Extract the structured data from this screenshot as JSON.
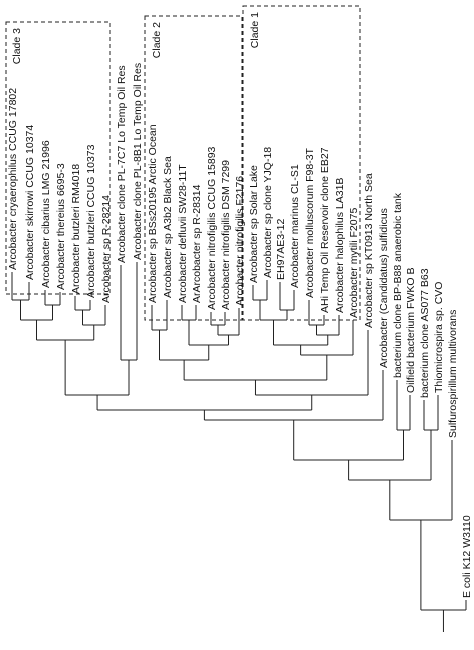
{
  "clades": [
    "Clade 3",
    "Clade 2",
    "Clade 1"
  ],
  "leaves": [
    "Arcobacter cryaerophilus CCUG 17802",
    "Arcobacter skirrowi CCUG 10374",
    "Arcobacter cibarius LMG 21996",
    "Arcobacter thereius 6695-3",
    "Arcobacter butzleri RM4018",
    "Arcobacter butzleri CCUG 10373",
    "Arcobacter sp R-28214",
    "Arcobacter clone PL-7C7 Lo Temp Oil Res",
    "Arcobacter clone PL-8B1 Lo Temp Oil Res",
    "Arcobacter sp BSs20195 Arctic Ocean",
    "Arcobacter sp A3b2 Black Sea",
    "Arcobacter defluvii SW28-11T",
    "ArArcobacter sp R-28314",
    "Arcobacter nitrofigilis CCUG 15893",
    "Arcobacter nitrofigilis DSM 7299",
    "Arcobacter nitrofigilis F2176",
    "Arcobacter sp Solar Lake",
    "Arcobacter sp clone YJQ-18",
    "EH97AE3-12",
    "Arcobacter marinus CL-S1",
    "Arcobacter molluscorum F98-3T",
    "AHi Temp Oil Reservoir clone EB27",
    "Arcobacter halophilus LA31B",
    "Arcobacter mytili F2075",
    "Arcobacter sp KT0913 North Sea",
    "Arcobacter (Candidatus) sulfidicus",
    "bacterium clone BP-B88 anaerobic tank",
    "Oilfield bacterium FWKO B",
    "bacterium clone AS077 B63",
    "Thiomicrospira sp. CVO",
    "Sulfurospirillum multivorans",
    "E coli K12 W3110"
  ]
}
